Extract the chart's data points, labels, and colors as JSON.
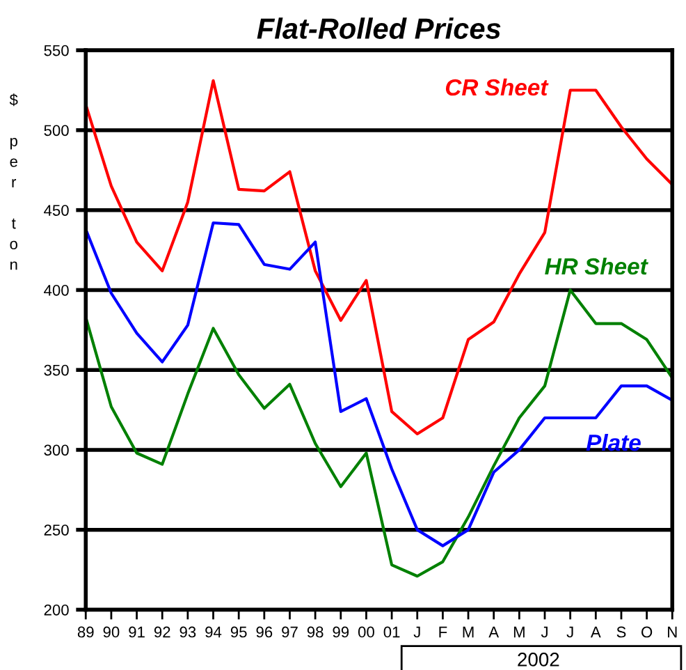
{
  "chart_data": {
    "type": "line",
    "title": "Flat-Rolled Prices",
    "ylabel": "$ per ton",
    "categories": [
      "89",
      "90",
      "91",
      "92",
      "93",
      "94",
      "95",
      "96",
      "97",
      "98",
      "99",
      "00",
      "01",
      "J",
      "F",
      "M",
      "A",
      "M",
      "J",
      "J",
      "A",
      "S",
      "O",
      "N"
    ],
    "series": [
      {
        "name": "CR Sheet",
        "color": "#ff0000",
        "values": [
          516,
          465,
          430,
          412,
          455,
          531,
          463,
          462,
          474,
          412,
          381,
          406,
          324,
          310,
          320,
          369,
          380,
          410,
          436,
          525,
          525,
          502,
          482,
          466
        ]
      },
      {
        "name": "HR Sheet",
        "color": "#008000",
        "values": [
          383,
          327,
          298,
          291,
          335,
          376,
          347,
          326,
          341,
          304,
          277,
          298,
          228,
          221,
          230,
          258,
          290,
          320,
          340,
          400,
          379,
          379,
          369,
          345
        ]
      },
      {
        "name": "Plate",
        "color": "#0000ff",
        "values": [
          438,
          398,
          373,
          355,
          378,
          442,
          441,
          416,
          413,
          430,
          324,
          332,
          288,
          250,
          240,
          250,
          286,
          300,
          320,
          320,
          320,
          340,
          340,
          331
        ]
      }
    ],
    "ylim": [
      200,
      550
    ],
    "yticks": [
      200,
      250,
      300,
      350,
      400,
      450,
      500,
      550
    ],
    "grid": "y",
    "legend": false,
    "annotations": [
      "2002"
    ]
  }
}
